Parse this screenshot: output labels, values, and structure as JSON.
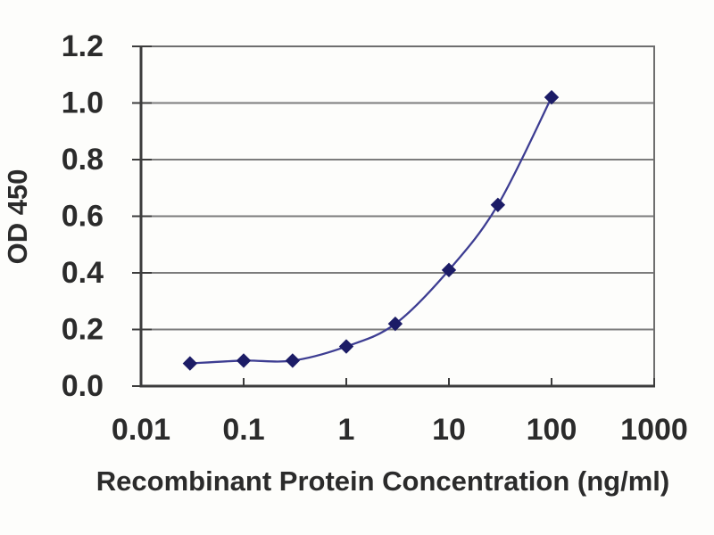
{
  "page": {
    "background": "#fdfdfb"
  },
  "chart_data": {
    "type": "line",
    "x_scale": "log",
    "x": [
      0.03,
      0.1,
      0.3,
      1,
      3,
      10,
      30,
      100
    ],
    "y": [
      0.08,
      0.09,
      0.09,
      0.14,
      0.22,
      0.41,
      0.64,
      1.02
    ],
    "title": "",
    "xlabel": "Recombinant Protein Concentration (ng/ml)",
    "ylabel": "OD 450",
    "xlim": [
      0.01,
      1000
    ],
    "ylim": [
      0,
      1.2
    ],
    "x_tick_values": [
      0.01,
      0.1,
      1,
      10,
      100,
      1000
    ],
    "x_tick_labels": [
      "0.01",
      "0.1",
      "1",
      "10",
      "100",
      "1000"
    ],
    "y_tick_values": [
      0,
      0.2,
      0.4,
      0.6,
      0.8,
      1.0,
      1.2
    ],
    "y_tick_labels": [
      "0.0",
      "0.2",
      "0.4",
      "0.6",
      "0.8",
      "1.0",
      "1.2"
    ],
    "grid": true,
    "legend": "none",
    "marker": "diamond",
    "line_style": "smooth",
    "colors": {
      "line": "#3d3d92",
      "marker": "#1c1c66",
      "grid": "#7c7c7c",
      "axis": "#3c3c3c",
      "frame": "#6e6e6e",
      "text": "#2b2b2b"
    }
  }
}
